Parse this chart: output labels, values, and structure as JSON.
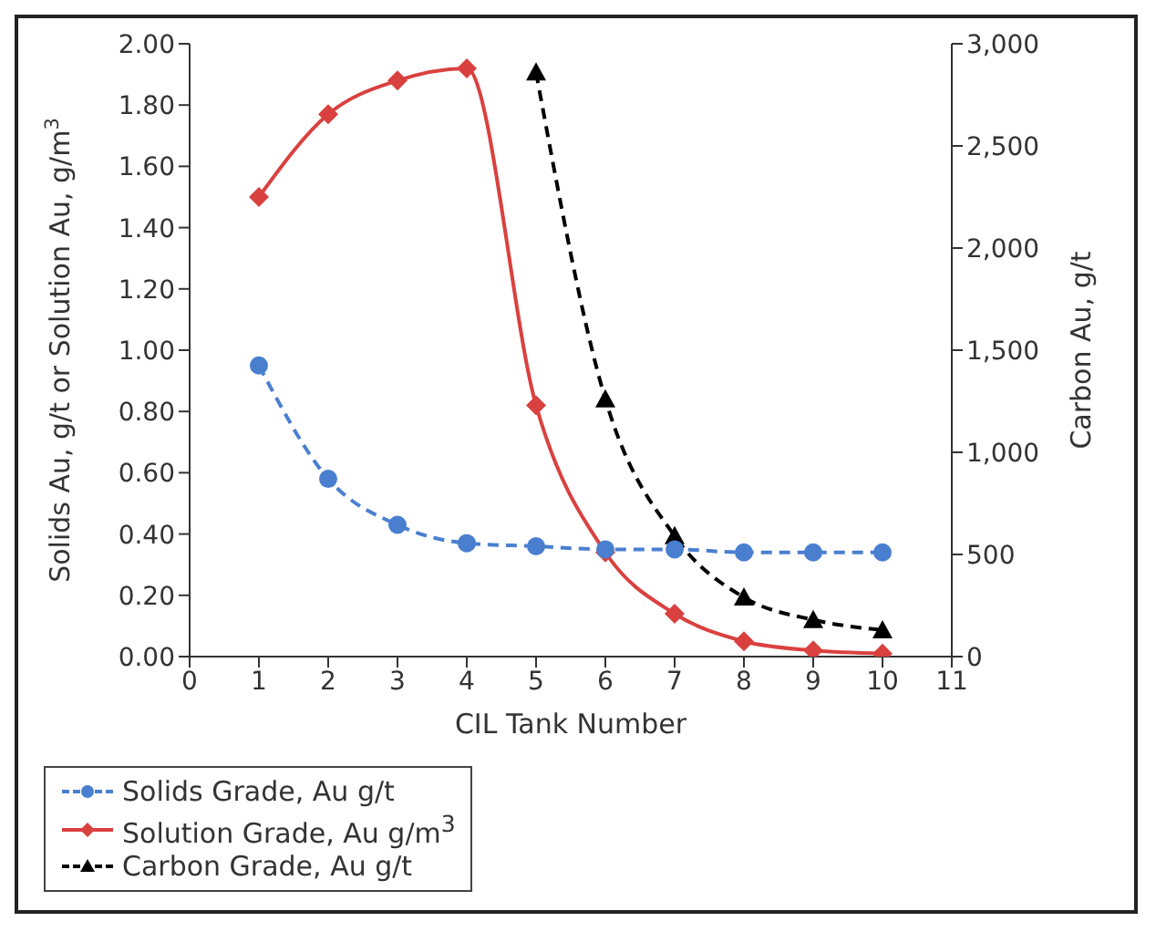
{
  "chart_data": {
    "type": "line",
    "xlabel": "CIL Tank Number",
    "ylabel": "Solids Au, g/t or Solution Au, g/m$^{3}$",
    "y2label": "Carbon Au, g/t",
    "x": [
      1,
      2,
      3,
      4,
      5,
      6,
      7,
      8,
      9,
      10
    ],
    "xlim": [
      0,
      11
    ],
    "xticks": [
      0,
      1,
      2,
      3,
      4,
      5,
      6,
      7,
      8,
      9,
      10,
      11
    ],
    "ylim": [
      0,
      2
    ],
    "yticks": [
      {
        "value": 0,
        "label": "0.00"
      },
      {
        "value": 0.2,
        "label": "0.20"
      },
      {
        "value": 0.4,
        "label": "0.40"
      },
      {
        "value": 0.6,
        "label": "0.60"
      },
      {
        "value": 0.8,
        "label": "0.80"
      },
      {
        "value": 1,
        "label": "1.00"
      },
      {
        "value": 1.2,
        "label": "1.20"
      },
      {
        "value": 1.4,
        "label": "1.40"
      },
      {
        "value": 1.6,
        "label": "1.60"
      },
      {
        "value": 1.8,
        "label": "1.80"
      },
      {
        "value": 2,
        "label": "2.00"
      }
    ],
    "y2lim": [
      0,
      3000
    ],
    "y2ticks": [
      0,
      500,
      {
        "value": 1000,
        "label": "1,000"
      },
      {
        "value": 1500,
        "label": "1,500"
      },
      {
        "value": 2000,
        "label": "2,000"
      },
      {
        "value": 2500,
        "label": "2,500"
      },
      {
        "value": 3000,
        "label": "3,000"
      }
    ],
    "grid": false,
    "legend": "bottom",
    "series": [
      {
        "name": "Solids Grade, Au g/t",
        "color": "#4a7fd0",
        "line_style": "dashed",
        "marker": "circle",
        "values": [
          0.95,
          0.58,
          0.43,
          0.37,
          0.36,
          0.35,
          0.35,
          0.34,
          0.34,
          0.34
        ]
      },
      {
        "name": "Solution Grade, Au g/m$^{3}$",
        "color": "#d9413f",
        "line_style": "solid",
        "marker": "diamond",
        "values": [
          1.5,
          1.77,
          1.88,
          1.92,
          0.82,
          0.34,
          0.14,
          0.05,
          0.02,
          0.01
        ]
      },
      {
        "name": "Carbon Grade, Au g/t",
        "color": "#000000",
        "line_style": "dashed",
        "marker": "triangle",
        "axis": "y2",
        "values": [
          null,
          null,
          null,
          null,
          2860,
          1260,
          590,
          290,
          180,
          130
        ]
      }
    ]
  }
}
